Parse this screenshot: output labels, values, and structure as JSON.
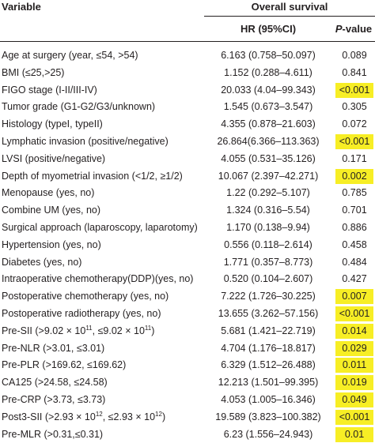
{
  "header": {
    "variable": "Variable",
    "overall_survival": "Overall survival",
    "hr_label": "HR (95%CI)",
    "p_italic": "P",
    "p_rest": "-value"
  },
  "highlight_color": "#f7ee25",
  "rows": [
    {
      "variable": "Age at surgery (year, ≤54, >54)",
      "hr": "6.163 (0.758–50.097)",
      "p": "0.089",
      "significant": false
    },
    {
      "variable": "BMI (≤25,>25)",
      "hr": "1.152 (0.288–4.611)",
      "p": "0.841",
      "significant": false
    },
    {
      "variable": "FIGO stage (I-II/III-IV)",
      "hr": "20.033 (4.04–99.343)",
      "p": "<0.001",
      "significant": true
    },
    {
      "variable": "Tumor grade (G1-G2/G3/unknown)",
      "hr": "1.545 (0.673–3.547)",
      "p": "0.305",
      "significant": false
    },
    {
      "variable": "Histology (typeI, typeII)",
      "hr": "4.355 (0.878–21.603)",
      "p": "0.072",
      "significant": false
    },
    {
      "variable": "Lymphatic invasion (positive/negative)",
      "hr": "26.864(6.366–113.363)",
      "p": "<0.001",
      "significant": true
    },
    {
      "variable": "LVSI (positive/negative)",
      "hr": "4.055 (0.531–35.126)",
      "p": "0.171",
      "significant": false
    },
    {
      "variable": "Depth of myometrial invasion (<1/2, ≥1/2)",
      "hr": "10.067 (2.397–42.271)",
      "p": "0.002",
      "significant": true
    },
    {
      "variable": "Menopause (yes, no)",
      "hr": "1.22 (0.292–5.107)",
      "p": "0.785",
      "significant": false
    },
    {
      "variable": "Combine UM (yes, no)",
      "hr": "1.324 (0.316–5.54)",
      "p": "0.701",
      "significant": false
    },
    {
      "variable": "Surgical approach (laparoscopy, laparotomy)",
      "hr": "1.170 (0.138–9.94)",
      "p": "0.886",
      "significant": false
    },
    {
      "variable": "Hypertension (yes, no)",
      "hr": "0.556 (0.118–2.614)",
      "p": "0.458",
      "significant": false
    },
    {
      "variable": "Diabetes (yes, no)",
      "hr": "1.771 (0.357–8.773)",
      "p": "0.484",
      "significant": false
    },
    {
      "variable": "Intraoperative chemotherapy(DDP)(yes, no)",
      "hr": "0.520 (0.104–2.607)",
      "p": "0.427",
      "significant": false
    },
    {
      "variable": "Postoperative chemotherapy (yes, no)",
      "hr": "7.222 (1.726–30.225)",
      "p": "0.007",
      "significant": true
    },
    {
      "variable": "Postoperative radiotherapy (yes, no)",
      "hr": "13.655 (3.262–57.156)",
      "p": "<0.001",
      "significant": true
    },
    {
      "variable_pre": "Pre-SII (>9.02 × 10",
      "sup1": "11",
      "variable_mid": ", ≤9.02 × 10",
      "sup2": "11",
      "variable_post": ")",
      "hr": "5.681 (1.421–22.719)",
      "p": "0.014",
      "significant": true
    },
    {
      "variable": "Pre-NLR (>3.01, ≤3.01)",
      "hr": "4.704 (1.176–18.817)",
      "p": "0.029",
      "significant": true
    },
    {
      "variable": "Pre-PLR (>169.62, ≤169.62)",
      "hr": "6.329 (1.512–26.488)",
      "p": "0.011",
      "significant": true
    },
    {
      "variable": "CA125 (>24.58, ≤24.58)",
      "hr": "12.213 (1.501–99.395)",
      "p": "0.019",
      "significant": true
    },
    {
      "variable": "Pre-CRP (>3.73, ≤3.73)",
      "hr": "4.053 (1.005–16.346)",
      "p": "0.049",
      "significant": true
    },
    {
      "variable_pre": "Post3-SII (>2.93 × 10",
      "sup1": "12",
      "variable_mid": ", ≤2.93 × 10",
      "sup2": "12",
      "variable_post": ")",
      "hr": "19.589 (3.823–100.382)",
      "p": "<0.001",
      "significant": true
    },
    {
      "variable": "Pre-MLR (>0.31,≤0.31)",
      "hr": "6.23 (1.556–24.943)",
      "p": "0.01",
      "significant": true
    }
  ]
}
